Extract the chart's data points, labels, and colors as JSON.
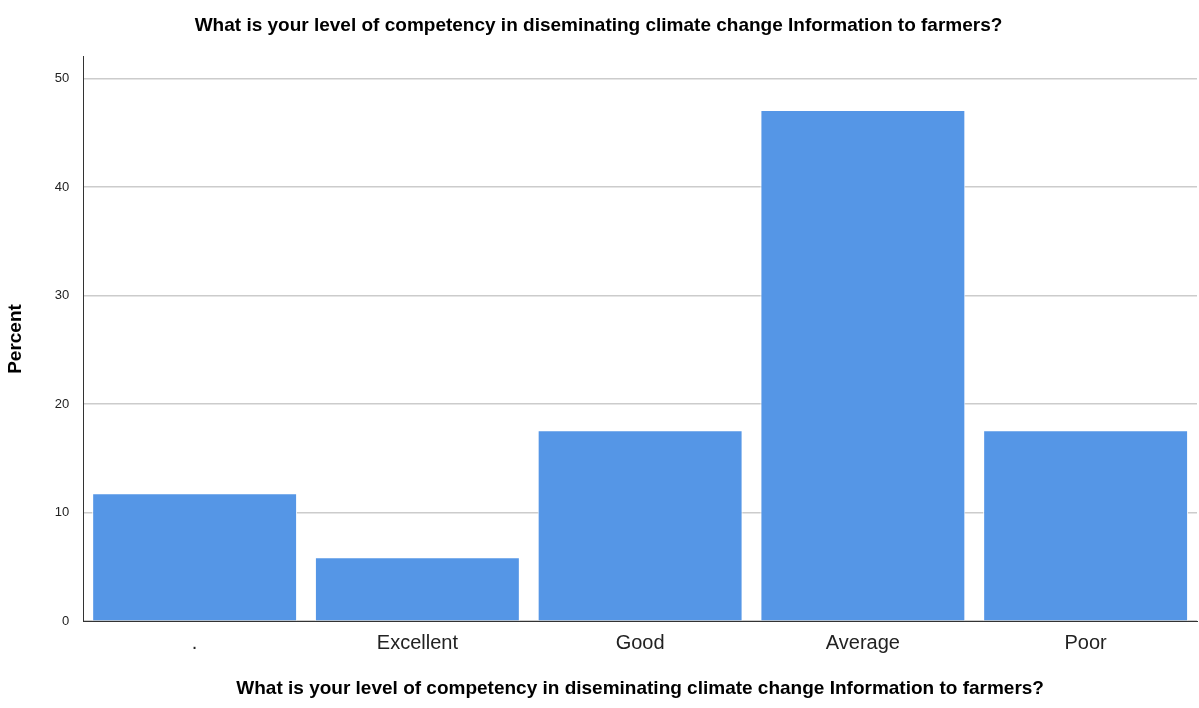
{
  "chart_data": {
    "type": "bar",
    "title": "What is your level of competency in diseminating climate change Information to farmers?",
    "xlabel": "What is your level of competency in diseminating climate change Information to farmers?",
    "ylabel": "Percent",
    "categories": [
      ".",
      "Excellent",
      "Good",
      "Average",
      "Poor"
    ],
    "values": [
      11.8,
      5.9,
      17.6,
      47.1,
      17.6
    ],
    "color": "#5596e6",
    "ylim": [
      0,
      52
    ],
    "yticks": [
      0,
      10,
      20,
      30,
      40,
      50
    ],
    "grid": "y",
    "legend": false
  }
}
